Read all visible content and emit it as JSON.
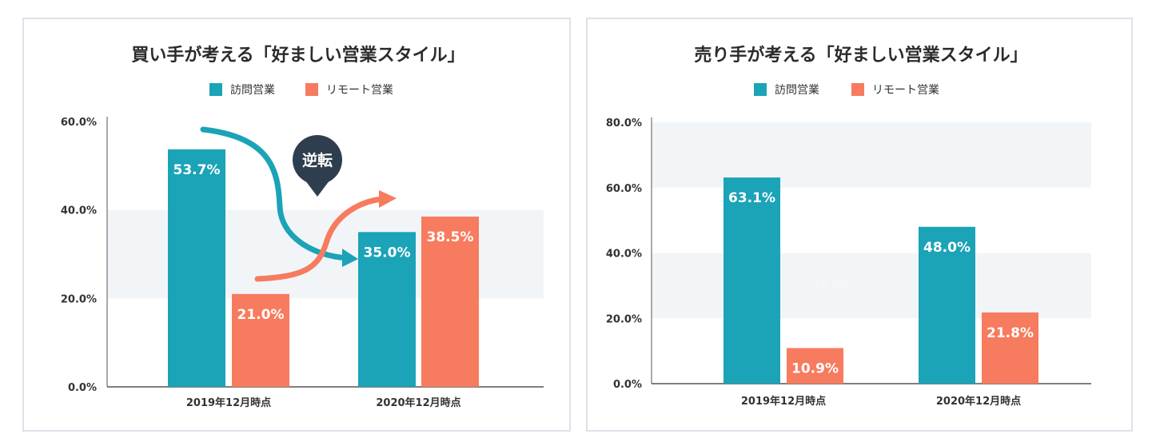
{
  "colors": {
    "visit": "#1ba3b7",
    "remote": "#f77b5e",
    "band": "#f2f5f8",
    "axis": "#555555",
    "badge": "#2f3e4e",
    "arrow_visit": "#1ba3b7",
    "arrow_remote": "#f77b5e"
  },
  "chart_data": [
    {
      "type": "bar",
      "title": "買い手が考える「好ましい営業スタイル」",
      "categories": [
        "2019年12月時点",
        "2020年12月時点"
      ],
      "series": [
        {
          "name": "訪問営業",
          "values": [
            53.7,
            35.0
          ],
          "labels": [
            "53.7%",
            "35.0%"
          ]
        },
        {
          "name": "リモート営業",
          "values": [
            21.0,
            38.5
          ],
          "labels": [
            "21.0%",
            "38.5%"
          ]
        }
      ],
      "ylim": [
        0,
        60
      ],
      "yticks": [
        0,
        20,
        40,
        60
      ],
      "ytick_labels": [
        "0.0%",
        "20.0%",
        "40.0%",
        "60.0%"
      ],
      "legend_position": "top-center",
      "annotation": "逆転",
      "ghost_label": ""
    },
    {
      "type": "bar",
      "title": "売り手が考える「好ましい営業スタイル」",
      "categories": [
        "2019年12月時点",
        "2020年12月時点"
      ],
      "series": [
        {
          "name": "訪問営業",
          "values": [
            63.1,
            48.0
          ],
          "labels": [
            "63.1%",
            "48.0%"
          ]
        },
        {
          "name": "リモート営業",
          "values": [
            10.9,
            21.8
          ],
          "labels": [
            "10.9%",
            "21.8%"
          ]
        }
      ],
      "ylim": [
        0,
        80
      ],
      "yticks": [
        0,
        20,
        40,
        60,
        80
      ],
      "ytick_labels": [
        "0.0%",
        "20.0%",
        "40.0%",
        "60.0%",
        "80.0%"
      ],
      "legend_position": "top-center",
      "annotation": "",
      "ghost_label": "10.9%"
    }
  ]
}
